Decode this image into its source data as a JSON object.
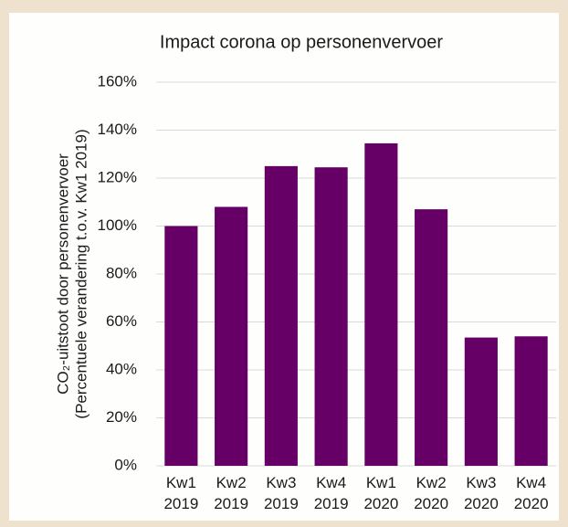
{
  "chart_data": {
    "type": "bar",
    "title": "Impact corona op personenvervoer",
    "y_label": [
      "CO₂-uitstoot door personenvervoer",
      "(Percentuele verandering t.o.v. Kw1 2019)"
    ],
    "categories": [
      "Kw1 2019",
      "Kw2 2019",
      "Kw3 2019",
      "Kw4 2019",
      "Kw1 2020",
      "Kw2 2020",
      "Kw3 2020",
      "Kw4 2020"
    ],
    "values": [
      100,
      108,
      125,
      124.5,
      134.5,
      107,
      53.5,
      54
    ],
    "color": "#660066",
    "ylim": [
      0,
      160
    ],
    "yticks": [
      {
        "value": 0,
        "label": "0%"
      },
      {
        "value": 20,
        "label": "20%"
      },
      {
        "value": 40,
        "label": "40%"
      },
      {
        "value": 60,
        "label": "60%"
      },
      {
        "value": 80,
        "label": "80%"
      },
      {
        "value": 100,
        "label": "100%"
      },
      {
        "value": 120,
        "label": "120%"
      },
      {
        "value": 140,
        "label": "140%"
      },
      {
        "value": 160,
        "label": "160%"
      }
    ],
    "grid": true
  }
}
